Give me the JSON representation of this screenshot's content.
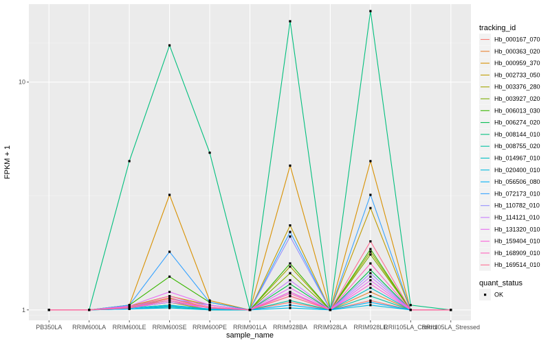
{
  "chart_data": {
    "type": "line",
    "xlabel": "sample_name",
    "ylabel": "FPKM + 1",
    "y_scale": "log10",
    "ylim": [
      0.9,
      22
    ],
    "y_ticks": [
      {
        "value": 1,
        "label": "1"
      },
      {
        "value": 10,
        "label": "10"
      }
    ],
    "categories": [
      "PB350LA",
      "RRIM600LA",
      "RRIM600LE",
      "RRIM600SE",
      "RRIM600PE",
      "RRIM901LA",
      "RRIM928BA",
      "RRIM928LA",
      "RRIM928LE",
      "RRII105LA_Control",
      "RRII105LA_Stressed"
    ],
    "legend_title": "tracking_id",
    "series": [
      {
        "name": "Hb_000167_070",
        "color": "#F8766D",
        "values": [
          1,
          1,
          1.02,
          1.1,
          1,
          1,
          1.08,
          1,
          1.1,
          1,
          1
        ]
      },
      {
        "name": "Hb_000363_020",
        "color": "#EA8331",
        "values": [
          1,
          1,
          1.03,
          1.13,
          1.02,
          1,
          1.15,
          1,
          1.2,
          1,
          1
        ]
      },
      {
        "name": "Hb_000959_370",
        "color": "#D89000",
        "values": [
          1,
          1,
          1.05,
          3.2,
          1.1,
          1,
          4.3,
          1,
          4.5,
          1,
          1
        ]
      },
      {
        "name": "Hb_002733_050",
        "color": "#C09B00",
        "values": [
          1,
          1,
          1.04,
          1.15,
          1.05,
          1,
          2.35,
          1,
          2.8,
          1,
          1
        ]
      },
      {
        "name": "Hb_003376_280",
        "color": "#A3A500",
        "values": [
          1,
          1,
          1.02,
          1.08,
          1,
          1,
          1.55,
          1,
          1.8,
          1,
          1
        ]
      },
      {
        "name": "Hb_003927_020",
        "color": "#7CAE00",
        "values": [
          1,
          1,
          1.03,
          1.1,
          1.02,
          1,
          1.45,
          1,
          1.75,
          1,
          1
        ]
      },
      {
        "name": "Hb_006013_030",
        "color": "#39B600",
        "values": [
          1,
          1,
          1.05,
          1.4,
          1.08,
          1,
          1.6,
          1,
          1.85,
          1,
          1
        ]
      },
      {
        "name": "Hb_006274_020",
        "color": "#00BB4E",
        "values": [
          1,
          1,
          1.02,
          1.05,
          1,
          1,
          1.3,
          1,
          1.5,
          1,
          1
        ]
      },
      {
        "name": "Hb_008144_010",
        "color": "#00BF7D",
        "values": [
          1,
          1,
          4.5,
          14.5,
          4.9,
          1,
          18.5,
          1,
          20.5,
          1.05,
          1
        ]
      },
      {
        "name": "Hb_008755_020",
        "color": "#00C1A3",
        "values": [
          1,
          1,
          1.01,
          1.03,
          1,
          1,
          1.1,
          1,
          1.15,
          1,
          1
        ]
      },
      {
        "name": "Hb_014967_010",
        "color": "#00BFC4",
        "values": [
          1,
          1,
          1.02,
          1.05,
          1.01,
          1,
          1.2,
          1,
          1.25,
          1,
          1
        ]
      },
      {
        "name": "Hb_020400_010",
        "color": "#00BAE0",
        "values": [
          1,
          1,
          1.01,
          1.02,
          1,
          1,
          1.02,
          1,
          1.05,
          1,
          1
        ]
      },
      {
        "name": "Hb_056506_080",
        "color": "#00B0F6",
        "values": [
          1,
          1,
          1.01,
          1.04,
          1.01,
          1,
          1.05,
          1,
          1.08,
          1,
          1
        ]
      },
      {
        "name": "Hb_072173_010",
        "color": "#35A2FF",
        "values": [
          1,
          1,
          1.05,
          1.8,
          1.08,
          1,
          2.2,
          1,
          3.2,
          1,
          1
        ]
      },
      {
        "name": "Hb_110782_010",
        "color": "#9590FF",
        "values": [
          1,
          1,
          1.03,
          1.12,
          1.05,
          1,
          2.1,
          1,
          1.45,
          1,
          1
        ]
      },
      {
        "name": "Hb_114121_010",
        "color": "#C77CFF",
        "values": [
          1,
          1,
          1.02,
          1.08,
          1.02,
          1,
          1.35,
          1,
          1.4,
          1,
          1
        ]
      },
      {
        "name": "Hb_131320_010",
        "color": "#E76BF3",
        "values": [
          1,
          1,
          1.04,
          1.2,
          1.05,
          1,
          1.25,
          1,
          1.35,
          1,
          1
        ]
      },
      {
        "name": "Hb_159404_010",
        "color": "#FA62DB",
        "values": [
          1,
          1,
          1.02,
          1.1,
          1.02,
          1,
          1.2,
          1,
          1.3,
          1,
          1
        ]
      },
      {
        "name": "Hb_168909_010",
        "color": "#FF62BC",
        "values": [
          1,
          1,
          1.03,
          1.15,
          1.03,
          1,
          1.18,
          1,
          1.6,
          1,
          1
        ]
      },
      {
        "name": "Hb_169514_010",
        "color": "#FF6C91",
        "values": [
          1,
          1,
          1.02,
          1.12,
          1.02,
          1,
          1.15,
          1,
          2.0,
          1,
          1
        ]
      }
    ],
    "shape_legend_title": "quant_status",
    "shape_legend_items": [
      "OK"
    ],
    "grid": true,
    "legend_position": "right"
  }
}
